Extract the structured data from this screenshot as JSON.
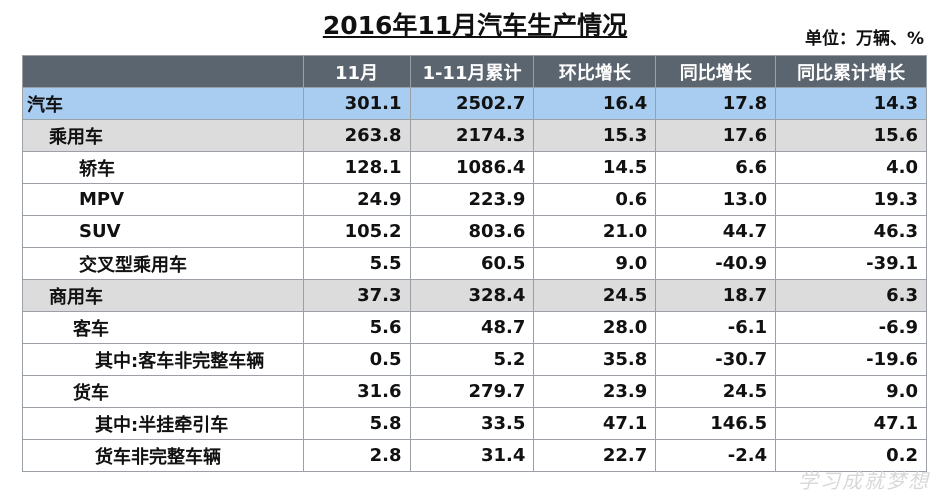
{
  "header": {
    "title": "2016年11月汽车生产情况",
    "unit": "单位：万辆、%"
  },
  "table": {
    "columns": [
      "11月",
      "1-11月累计",
      "环比增长",
      "同比增长",
      "同比累计增长"
    ],
    "rows": [
      [
        "汽车",
        "301.1",
        "2502.7",
        "16.4",
        "17.8",
        "14.3"
      ],
      [
        "乘用车",
        "263.8",
        "2174.3",
        "15.3",
        "17.6",
        "15.6"
      ],
      [
        "轿车",
        "128.1",
        "1086.4",
        "14.5",
        "6.6",
        "4.0"
      ],
      [
        "MPV",
        "24.9",
        "223.9",
        "0.6",
        "13.0",
        "19.3"
      ],
      [
        "SUV",
        "105.2",
        "803.6",
        "21.0",
        "44.7",
        "46.3"
      ],
      [
        "交叉型乘用车",
        "5.5",
        "60.5",
        "9.0",
        "-40.9",
        "-39.1"
      ],
      [
        "商用车",
        "37.3",
        "328.4",
        "24.5",
        "18.7",
        "6.3"
      ],
      [
        "客车",
        "5.6",
        "48.7",
        "28.0",
        "-6.1",
        "-6.9"
      ],
      [
        "其中:客车非完整车辆",
        "0.5",
        "5.2",
        "35.8",
        "-30.7",
        "-19.6"
      ],
      [
        "货车",
        "31.6",
        "279.7",
        "23.9",
        "24.5",
        "9.0"
      ],
      [
        "其中:半挂牵引车",
        "5.8",
        "33.5",
        "47.1",
        "146.5",
        "47.1"
      ],
      [
        "货车非完整车辆",
        "2.8",
        "31.4",
        "22.7",
        "-2.4",
        "0.2"
      ]
    ]
  },
  "watermark": "学习成就梦想"
}
